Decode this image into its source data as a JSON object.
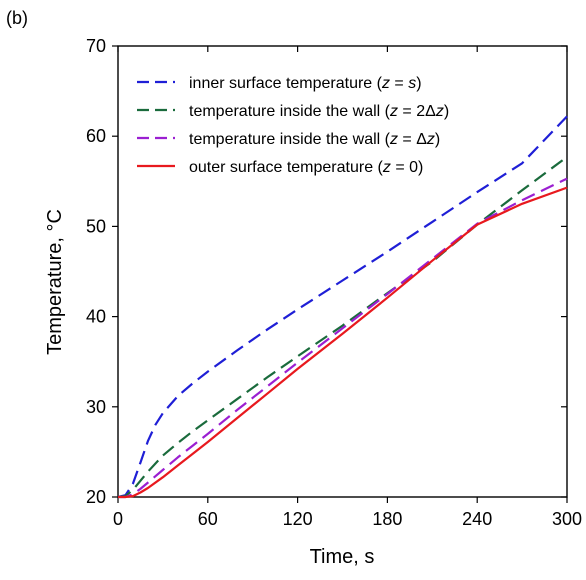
{
  "panel_label": "(b)",
  "chart_data": {
    "type": "line",
    "xlabel": "Time, s",
    "ylabel": "Temperature, °C",
    "xlim": [
      0,
      300
    ],
    "ylim": [
      20,
      70
    ],
    "xticks": [
      0,
      60,
      120,
      180,
      240,
      300
    ],
    "yticks": [
      20,
      30,
      40,
      50,
      60,
      70
    ],
    "grid": false,
    "legend_position": "top-left",
    "series": [
      {
        "name": "inner surface temperature (z = s)",
        "legend_parts": [
          {
            "text": "inner surface temperature (",
            "italic": false
          },
          {
            "text": "z",
            "italic": true
          },
          {
            "text": " = ",
            "italic": false
          },
          {
            "text": "s",
            "italic": true
          },
          {
            "text": ")",
            "italic": false
          }
        ],
        "color": "#1f1fd6",
        "dash": "dashed",
        "x": [
          0,
          5,
          10,
          15,
          20,
          25,
          30,
          40,
          50,
          60,
          80,
          100,
          120,
          150,
          180,
          210,
          240,
          270,
          300
        ],
        "y": [
          20,
          20.2,
          21.5,
          23.8,
          26.2,
          28.0,
          29.3,
          31.2,
          32.6,
          33.9,
          36.3,
          38.6,
          40.8,
          44.0,
          47.2,
          50.5,
          53.8,
          57.0,
          62.2
        ]
      },
      {
        "name": "temperature inside the wall (z = 2Δz)",
        "legend_parts": [
          {
            "text": "temperature inside the wall (",
            "italic": false
          },
          {
            "text": "z",
            "italic": true
          },
          {
            "text": " = 2Δ",
            "italic": false
          },
          {
            "text": "z",
            "italic": true
          },
          {
            "text": ")",
            "italic": false
          }
        ],
        "color": "#1a6b3c",
        "dash": "dashed",
        "x": [
          0,
          5,
          10,
          15,
          20,
          30,
          40,
          50,
          60,
          80,
          100,
          120,
          150,
          180,
          210,
          240,
          270,
          300
        ],
        "y": [
          20,
          20.1,
          20.8,
          21.8,
          22.8,
          24.6,
          26.0,
          27.3,
          28.5,
          30.9,
          33.3,
          35.6,
          39.0,
          42.6,
          46.1,
          50.2,
          54.0,
          57.7
        ]
      },
      {
        "name": "temperature inside the wall (z = Δz)",
        "legend_parts": [
          {
            "text": "temperature inside the wall (",
            "italic": false
          },
          {
            "text": "z",
            "italic": true
          },
          {
            "text": " = Δ",
            "italic": false
          },
          {
            "text": "z",
            "italic": true
          },
          {
            "text": ")",
            "italic": false
          }
        ],
        "color": "#9b1fd1",
        "dash": "dashed",
        "x": [
          0,
          5,
          10,
          15,
          20,
          30,
          40,
          50,
          60,
          80,
          100,
          120,
          150,
          180,
          210,
          240,
          270,
          300
        ],
        "y": [
          20,
          20.0,
          20.3,
          20.9,
          21.6,
          23.0,
          24.4,
          25.7,
          27.0,
          29.7,
          32.3,
          34.9,
          38.7,
          42.5,
          46.4,
          50.3,
          52.9,
          55.3
        ]
      },
      {
        "name": "outer surface temperature (z = 0)",
        "legend_parts": [
          {
            "text": "outer surface temperature (",
            "italic": false
          },
          {
            "text": "z",
            "italic": true
          },
          {
            "text": " = 0)",
            "italic": false
          }
        ],
        "color": "#e8191e",
        "dash": "solid",
        "x": [
          0,
          5,
          10,
          15,
          20,
          30,
          40,
          50,
          60,
          80,
          100,
          120,
          150,
          180,
          210,
          240,
          270,
          300
        ],
        "y": [
          20,
          20.0,
          20.1,
          20.5,
          21.0,
          22.2,
          23.5,
          24.8,
          26.1,
          28.8,
          31.5,
          34.2,
          38.1,
          42.1,
          46.2,
          50.2,
          52.5,
          54.3
        ]
      }
    ]
  }
}
